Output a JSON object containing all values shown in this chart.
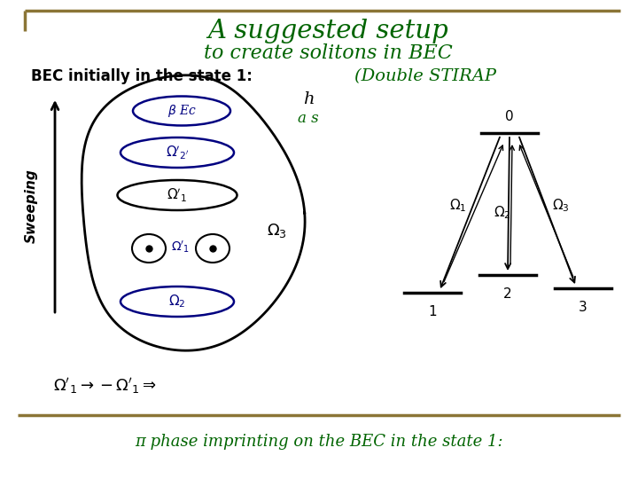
{
  "title_line1": "A suggested setup",
  "title_line2": "to create solitons in BEC",
  "title_color": "#006400",
  "subtitle_right": "(Double STIRAP",
  "subtitle_right_color": "#006400",
  "bec_label": "BEC initially in the state 1:",
  "bec_label_color": "#000000",
  "h_label": "h",
  "as_label": "a s",
  "sweeping_label": "Sweeping",
  "omega_eq": "Ω’₁ → −Ω’₁ ⇒",
  "bottom_text": "π phase imprinting on the BEC in the state 1:",
  "bottom_text_color": "#006400",
  "border_color_top": "#8B7536",
  "border_color_bottom": "#8B7536",
  "bg_color": "#ffffff",
  "energy_level_color": "#000000",
  "arrow_color": "#000000",
  "level_labels": [
    "1",
    "2",
    "3",
    "0"
  ],
  "omega_labels": [
    "Ω₁",
    "Ω₂",
    "Ω₃"
  ],
  "bec_drawing_color": "#000080"
}
